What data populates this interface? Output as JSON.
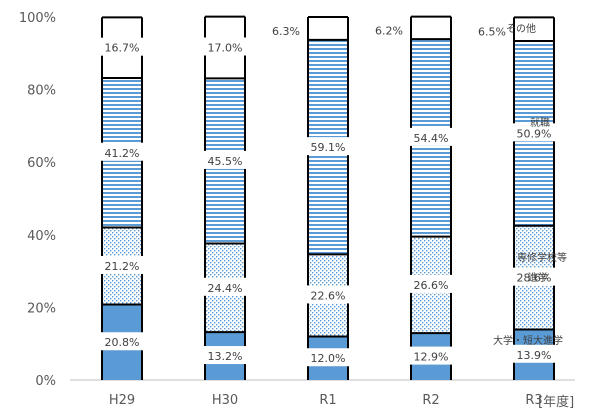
{
  "chart_data": {
    "type": "bar",
    "stacked": true,
    "percent": true,
    "categories": [
      "H29",
      "H30",
      "R1",
      "R2",
      "R3"
    ],
    "x_unit": "[年度]",
    "y_ticks": [
      "0%",
      "20%",
      "40%",
      "60%",
      "80%",
      "100%"
    ],
    "ylim": [
      0,
      100
    ],
    "grid": false,
    "series": [
      {
        "name": "大学・短大進学",
        "values": [
          20.8,
          13.2,
          12.0,
          12.9,
          13.9
        ],
        "labels": [
          "20.8%",
          "13.2%",
          "12.0%",
          "12.9%",
          "13.9%"
        ],
        "color": "#5b9bd5",
        "pattern": "solid"
      },
      {
        "name": "専修学校等進学",
        "values": [
          21.2,
          24.4,
          22.6,
          26.6,
          28.6
        ],
        "labels": [
          "21.2%",
          "24.4%",
          "22.6%",
          "26.6%",
          "28.6%"
        ],
        "color": "#5b9bd5",
        "pattern": "dots"
      },
      {
        "name": "就職",
        "values": [
          41.2,
          45.5,
          59.1,
          54.4,
          50.9
        ],
        "labels": [
          "41.2%",
          "45.5%",
          "59.1%",
          "54.4%",
          "50.9%"
        ],
        "color": "#5b9bd5",
        "pattern": "hlines"
      },
      {
        "name": "その他",
        "values": [
          16.7,
          17.0,
          6.3,
          6.2,
          6.5
        ],
        "labels": [
          "16.7%",
          "17.0%",
          "6.3%",
          "6.2%",
          "6.5%"
        ],
        "color": "#ffffff",
        "pattern": "white"
      }
    ],
    "series_labels": {
      "other": "その他",
      "employment": "就職",
      "vocational_line1": "専修学校等",
      "vocational_line2": "進学",
      "university": "大学・短大進学"
    }
  }
}
